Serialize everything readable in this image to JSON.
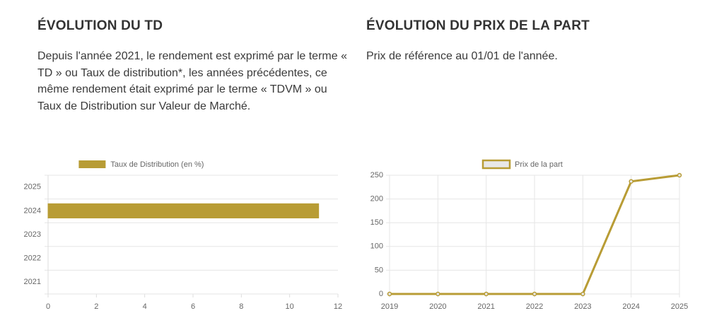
{
  "sections": [
    {
      "title": "ÉVOLUTION DU TD",
      "text": "Depuis l'année 2021, le rendement est exprimé par le terme « TD » ou Taux de distribution*, les années précédentes, ce même rendement était exprimé par le terme « TDVM » ou Taux de Distribution sur Valeur de Marché."
    },
    {
      "title": "ÉVOLUTION DU PRIX DE LA PART",
      "text": "Prix de référence au 01/01 de l'année."
    }
  ],
  "chart_data": [
    {
      "type": "hbar",
      "categories": [
        "2025",
        "2024",
        "2023",
        "2022",
        "2021"
      ],
      "series": [
        {
          "name": "Taux de Distribution (en %)",
          "color": "#b89c35",
          "values": [
            0,
            11.2,
            0,
            0,
            0
          ]
        }
      ],
      "xlim": [
        0,
        12
      ],
      "xticks": [
        0,
        2,
        4,
        6,
        8,
        10,
        12
      ],
      "grid": true
    },
    {
      "type": "line",
      "x": [
        2019,
        2020,
        2021,
        2022,
        2023,
        2024,
        2025
      ],
      "series": [
        {
          "name": "Prix de la part",
          "color": "#b89c35",
          "values": [
            0,
            0,
            0,
            0,
            0,
            237,
            250
          ]
        }
      ],
      "xlim": [
        2019,
        2025
      ],
      "xticks": [
        2019,
        2020,
        2021,
        2022,
        2023,
        2024,
        2025
      ],
      "ylim": [
        0,
        250
      ],
      "yticks": [
        0,
        50,
        100,
        150,
        200,
        250
      ],
      "grid": true
    }
  ]
}
